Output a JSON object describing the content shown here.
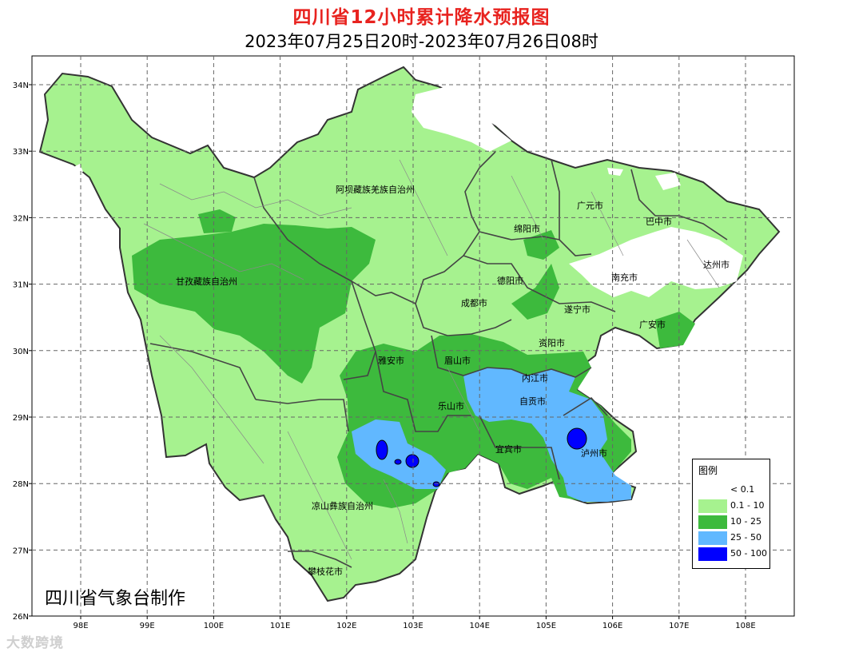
{
  "title": "四川省12小时累计降水预报图",
  "subtitle": "2023年07月25日20时-2023年07月26日08时",
  "axes": {
    "lat_labels": [
      "34N",
      "33N",
      "32N",
      "31N",
      "30N",
      "29N",
      "28N",
      "27N",
      "26N"
    ],
    "lon_labels": [
      "98E",
      "99E",
      "100E",
      "101E",
      "102E",
      "103E",
      "104E",
      "105E",
      "106E",
      "107E",
      "108E"
    ]
  },
  "regions": {
    "aba": "阿坝藏族羌族自治州",
    "ganzi": "甘孜藏族自治州",
    "liangshan": "凉山彝族自治州",
    "panzhihua": "攀枝花市",
    "yaan": "雅安市",
    "meishan": "眉山市",
    "leshan": "乐山市",
    "chengdu": "成都市",
    "deyang": "德阳市",
    "mianyang": "绵阳市",
    "guangyuan": "广元市",
    "bazhong": "巴中市",
    "dazhou": "达州市",
    "nanchong": "南充市",
    "suining": "遂宁市",
    "guangan": "广安市",
    "ziyang": "资阳市",
    "neijiang": "内江市",
    "zigong": "自贡市",
    "yibin": "宜宾市",
    "luzhou": "泸州市"
  },
  "legend": {
    "title": "图例",
    "items": [
      {
        "label": "< 0.1",
        "color": "#ffffff"
      },
      {
        "label": "0.1 - 10",
        "color": "#a6f28f"
      },
      {
        "label": "10 - 25",
        "color": "#3dba3d"
      },
      {
        "label": "25 - 50",
        "color": "#61b8ff"
      },
      {
        "label": "50 - 100",
        "color": "#0000ff"
      }
    ]
  },
  "attribution": "四川省气象台制作",
  "watermark": "大数跨境"
}
